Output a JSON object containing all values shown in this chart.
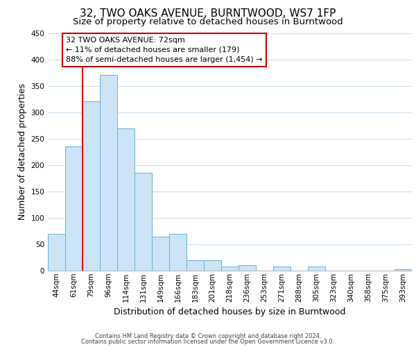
{
  "title": "32, TWO OAKS AVENUE, BURNTWOOD, WS7 1FP",
  "subtitle": "Size of property relative to detached houses in Burntwood",
  "xlabel": "Distribution of detached houses by size in Burntwood",
  "ylabel": "Number of detached properties",
  "bar_labels": [
    "44sqm",
    "61sqm",
    "79sqm",
    "96sqm",
    "114sqm",
    "131sqm",
    "149sqm",
    "166sqm",
    "183sqm",
    "201sqm",
    "218sqm",
    "236sqm",
    "253sqm",
    "271sqm",
    "288sqm",
    "305sqm",
    "323sqm",
    "340sqm",
    "358sqm",
    "375sqm",
    "393sqm"
  ],
  "bar_values": [
    70,
    235,
    320,
    370,
    270,
    185,
    65,
    70,
    20,
    20,
    8,
    10,
    0,
    8,
    0,
    8,
    0,
    0,
    0,
    0,
    2
  ],
  "bar_color": "#cce4f5",
  "bar_edge_color": "#6baed6",
  "red_line_index": 2,
  "annotation_title": "32 TWO OAKS AVENUE: 72sqm",
  "annotation_line1": "← 11% of detached houses are smaller (179)",
  "annotation_line2": "88% of semi-detached houses are larger (1,454) →",
  "annotation_box_color": "#ffffff",
  "annotation_box_edge": "#cc0000",
  "ylim": [
    0,
    450
  ],
  "yticks": [
    0,
    50,
    100,
    150,
    200,
    250,
    300,
    350,
    400,
    450
  ],
  "footer_line1": "Contains HM Land Registry data © Crown copyright and database right 2024.",
  "footer_line2": "Contains public sector information licensed under the Open Government Licence v3.0.",
  "bg_color": "#ffffff",
  "grid_color": "#c8dff0",
  "title_fontsize": 11,
  "subtitle_fontsize": 9.5,
  "axis_label_fontsize": 9,
  "tick_fontsize": 7.5,
  "footer_fontsize": 6,
  "ann_fontsize": 8
}
